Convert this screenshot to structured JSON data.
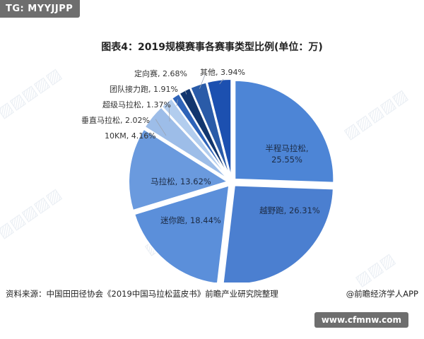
{
  "header": {
    "badge": "TG: MYYJJPP"
  },
  "footer": {
    "source": "资料来源：中国田田径协会《2019中国马拉松蓝皮书》前瞻产业研究院整理",
    "brand": "@前瞻经济学人APP",
    "site_badge": "www.cfmnw.com"
  },
  "colors": [
    "#4d85d6",
    "#4b7fd0",
    "#5b8fda",
    "#6a9ade",
    "#9dbde8",
    "#b2cdee",
    "#2e63b8",
    "#12366e",
    "#2a5ba8",
    "#1c50b0"
  ],
  "chart_data": {
    "type": "pie",
    "title": "图表4：2019规模赛事各赛事类型比例(单位：万)",
    "slices": [
      {
        "label": "半程马拉松",
        "value": 25.55,
        "text": "25.55%"
      },
      {
        "label": "越野跑",
        "value": 26.31,
        "text": "26.31%"
      },
      {
        "label": "迷你跑",
        "value": 18.44,
        "text": "18.44%"
      },
      {
        "label": "马拉松",
        "value": 13.62,
        "text": "13.62%"
      },
      {
        "label": "10KM",
        "value": 4.16,
        "text": "4.16%"
      },
      {
        "label": "垂直马拉松",
        "value": 2.02,
        "text": "2.02%"
      },
      {
        "label": "超级马拉松",
        "value": 1.37,
        "text": "1.37%"
      },
      {
        "label": "团队接力跑",
        "value": 1.91,
        "text": "1.91%"
      },
      {
        "label": "定向赛",
        "value": 2.68,
        "text": "2.68%"
      },
      {
        "label": "其他",
        "value": 3.94,
        "text": "3.94%"
      }
    ]
  }
}
